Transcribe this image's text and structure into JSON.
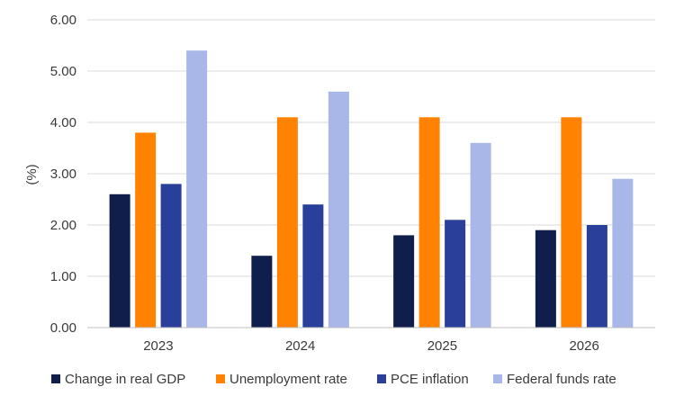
{
  "chart_data": {
    "type": "bar",
    "title": "",
    "xlabel": "",
    "ylabel": "(%)",
    "ylim": [
      0,
      6
    ],
    "ytick_labels": [
      "0.00",
      "1.00",
      "2.00",
      "3.00",
      "4.00",
      "5.00",
      "6.00"
    ],
    "categories": [
      "2023",
      "2024",
      "2025",
      "2026"
    ],
    "series": [
      {
        "name": "Change in real GDP",
        "color": "#0f1e4b",
        "values": [
          2.6,
          1.4,
          1.8,
          1.9
        ]
      },
      {
        "name": "Unemployment rate",
        "color": "#ff8200",
        "values": [
          3.8,
          4.1,
          4.1,
          4.1
        ]
      },
      {
        "name": "PCE inflation",
        "color": "#2a3f9a",
        "values": [
          2.8,
          2.4,
          2.1,
          2.0
        ]
      },
      {
        "name": "Federal funds rate",
        "color": "#a8b6e8",
        "values": [
          5.4,
          4.6,
          3.6,
          2.9
        ]
      }
    ],
    "grid": true,
    "legend_position": "bottom"
  }
}
